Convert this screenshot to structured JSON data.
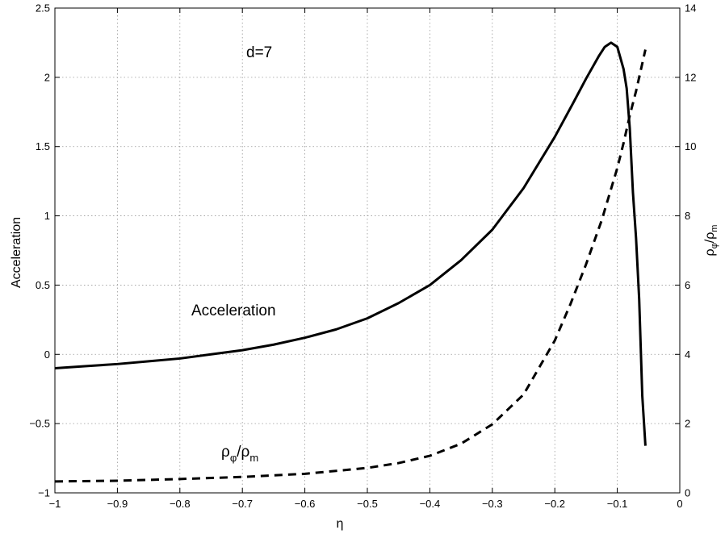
{
  "chart_data": {
    "type": "line",
    "xlabel": "η",
    "ylabel_left": "Acceleration",
    "ylabel_right": {
      "base": "ρ",
      "sub1": "φ",
      "mid": "/ρ",
      "sub2": "m"
    },
    "xlim": [
      -1,
      0
    ],
    "ylim_left": [
      -1,
      2.5
    ],
    "ylim_right": [
      0,
      14
    ],
    "x_ticks": [
      "−1",
      "−0.9",
      "−0.8",
      "−0.7",
      "−0.6",
      "−0.5",
      "−0.4",
      "−0.3",
      "−0.2",
      "−0.1",
      "0"
    ],
    "y_left_ticks": [
      "−1",
      "−0.5",
      "0",
      "0.5",
      "1",
      "1.5",
      "2",
      "2.5"
    ],
    "y_right_ticks": [
      "0",
      "2",
      "4",
      "6",
      "8",
      "10",
      "12",
      "14"
    ],
    "grid": true,
    "annotations": {
      "d_label": "d=7",
      "acceleration_label": "Acceleration",
      "ratio_label": {
        "base": "ρ",
        "sub1": "φ",
        "mid": "/ρ",
        "sub2": "m"
      }
    },
    "series": [
      {
        "axis": "left",
        "style": "solid",
        "color": "#000000",
        "x": [
          -1.0,
          -0.95,
          -0.9,
          -0.85,
          -0.8,
          -0.75,
          -0.7,
          -0.65,
          -0.6,
          -0.55,
          -0.5,
          -0.45,
          -0.4,
          -0.35,
          -0.3,
          -0.25,
          -0.2,
          -0.17,
          -0.15,
          -0.13,
          -0.12,
          -0.11,
          -0.1,
          -0.09,
          -0.085,
          -0.08,
          -0.075,
          -0.07,
          -0.065,
          -0.06,
          -0.055
        ],
        "y": [
          -0.1,
          -0.085,
          -0.07,
          -0.05,
          -0.03,
          0.0,
          0.03,
          0.07,
          0.12,
          0.18,
          0.26,
          0.37,
          0.5,
          0.68,
          0.9,
          1.2,
          1.57,
          1.82,
          1.99,
          2.15,
          2.22,
          2.25,
          2.22,
          2.06,
          1.92,
          1.63,
          1.17,
          0.84,
          0.4,
          -0.3,
          -0.66
        ]
      },
      {
        "axis": "right",
        "style": "dashed",
        "color": "#000000",
        "x": [
          -1.0,
          -0.9,
          -0.8,
          -0.7,
          -0.6,
          -0.5,
          -0.45,
          -0.4,
          -0.35,
          -0.3,
          -0.25,
          -0.2,
          -0.175,
          -0.15,
          -0.125,
          -0.1,
          -0.09,
          -0.08,
          -0.07,
          -0.06,
          -0.055
        ],
        "y": [
          0.33,
          0.35,
          0.4,
          0.46,
          0.55,
          0.72,
          0.86,
          1.07,
          1.42,
          1.98,
          2.84,
          4.4,
          5.45,
          6.6,
          7.87,
          9.38,
          10.1,
          10.9,
          11.6,
          12.4,
          12.8
        ]
      }
    ]
  }
}
